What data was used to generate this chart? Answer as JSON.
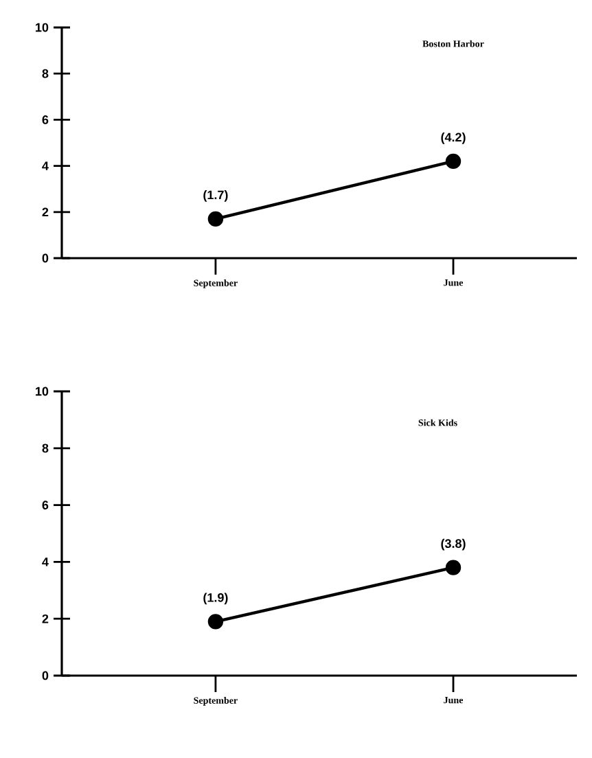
{
  "chart_data": [
    {
      "type": "line",
      "title": "Boston Harbor",
      "categories": [
        "September",
        "June"
      ],
      "series": [
        {
          "color": "#000000",
          "values": [
            1.7,
            4.2
          ],
          "value_labels": [
            "(1.7)",
            "(4.2)"
          ]
        }
      ],
      "ylim": [
        0,
        10
      ],
      "yticks": [
        0,
        2,
        4,
        6,
        8,
        10
      ],
      "marker": "circle",
      "line_style": "solid"
    },
    {
      "type": "line",
      "title": "Sick Kids",
      "categories": [
        "September",
        "June"
      ],
      "series": [
        {
          "color": "#000000",
          "values": [
            1.9,
            3.8
          ],
          "value_labels": [
            "(1.9)",
            "(3.8)"
          ]
        }
      ],
      "ylim": [
        0,
        10
      ],
      "yticks": [
        0,
        2,
        4,
        6,
        8,
        10
      ],
      "marker": "circle",
      "line_style": "solid"
    }
  ]
}
